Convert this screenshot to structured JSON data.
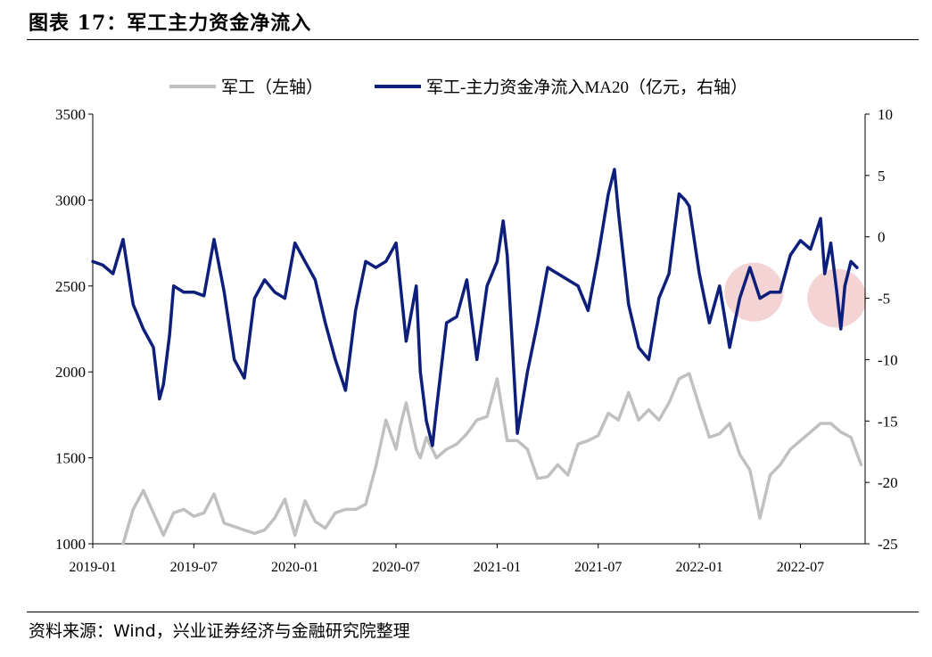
{
  "header": {
    "title": "图表 17：军工主力资金净流入"
  },
  "footer": {
    "source": "资料来源：Wind，兴业证券经济与金融研究院整理"
  },
  "colors": {
    "left_series": "#c0c0c0",
    "right_series": "#0d1f7a",
    "highlight": "#e8a7a7"
  },
  "chart_data": {
    "type": "line",
    "title": "军工主力资金净流入",
    "xlabel": "",
    "x_ticks": [
      "2019-01",
      "2019-07",
      "2020-01",
      "2020-07",
      "2021-01",
      "2021-07",
      "2022-01",
      "2022-07"
    ],
    "x_range": [
      "2019-01",
      "2022-10"
    ],
    "left_axis": {
      "ylim": [
        1000,
        3500
      ],
      "ticks": [
        1000,
        1500,
        2000,
        2500,
        3000,
        3500
      ]
    },
    "right_axis": {
      "ylim": [
        -25,
        10
      ],
      "ticks": [
        -25,
        -20,
        -15,
        -10,
        -5,
        0,
        5,
        10
      ]
    },
    "legend_position": "top-center",
    "grid": false,
    "series": [
      {
        "name": "军工（左轴）",
        "axis": "left",
        "x": [
          2019.15,
          2019.2,
          2019.25,
          2019.3,
          2019.35,
          2019.4,
          2019.45,
          2019.5,
          2019.55,
          2019.6,
          2019.65,
          2019.7,
          2019.75,
          2019.8,
          2019.85,
          2019.9,
          2019.95,
          2020.0,
          2020.05,
          2020.1,
          2020.15,
          2020.2,
          2020.25,
          2020.3,
          2020.35,
          2020.4,
          2020.45,
          2020.5,
          2020.52,
          2020.55,
          2020.6,
          2020.62,
          2020.65,
          2020.7,
          2020.75,
          2020.8,
          2020.85,
          2020.9,
          2020.95,
          2021.0,
          2021.05,
          2021.1,
          2021.15,
          2021.2,
          2021.25,
          2021.3,
          2021.35,
          2021.4,
          2021.45,
          2021.5,
          2021.55,
          2021.6,
          2021.65,
          2021.7,
          2021.75,
          2021.8,
          2021.85,
          2021.9,
          2021.95,
          2022.0,
          2022.05,
          2022.1,
          2022.15,
          2022.2,
          2022.25,
          2022.3,
          2022.35,
          2022.4,
          2022.45,
          2022.5,
          2022.55,
          2022.6,
          2022.65,
          2022.7,
          2022.75,
          2022.8
        ],
        "values": [
          1000,
          1200,
          1310,
          1180,
          1050,
          1180,
          1200,
          1160,
          1180,
          1290,
          1120,
          1100,
          1080,
          1060,
          1080,
          1150,
          1260,
          1050,
          1250,
          1130,
          1090,
          1180,
          1200,
          1200,
          1230,
          1450,
          1720,
          1550,
          1680,
          1820,
          1550,
          1500,
          1620,
          1500,
          1550,
          1580,
          1640,
          1720,
          1740,
          1960,
          1600,
          1600,
          1550,
          1380,
          1390,
          1460,
          1400,
          1580,
          1600,
          1630,
          1760,
          1720,
          1880,
          1720,
          1780,
          1720,
          1820,
          1960,
          1990,
          1800,
          1620,
          1640,
          1700,
          1520,
          1430,
          1150,
          1400,
          1460,
          1550,
          1600,
          1650,
          1700,
          1700,
          1650,
          1620,
          1460
        ],
        "notes": "approximate, values read from figure"
      },
      {
        "name": "军工-主力资金净流入MA20（亿元，右轴）",
        "axis": "right",
        "x": [
          2019.0,
          2019.05,
          2019.1,
          2019.15,
          2019.2,
          2019.25,
          2019.3,
          2019.33,
          2019.35,
          2019.38,
          2019.4,
          2019.45,
          2019.5,
          2019.55,
          2019.6,
          2019.65,
          2019.7,
          2019.75,
          2019.8,
          2019.85,
          2019.9,
          2019.95,
          2020.0,
          2020.05,
          2020.1,
          2020.15,
          2020.2,
          2020.25,
          2020.3,
          2020.35,
          2020.4,
          2020.45,
          2020.5,
          2020.55,
          2020.6,
          2020.62,
          2020.65,
          2020.68,
          2020.7,
          2020.75,
          2020.8,
          2020.85,
          2020.9,
          2020.95,
          2021.0,
          2021.03,
          2021.05,
          2021.1,
          2021.15,
          2021.2,
          2021.25,
          2021.3,
          2021.35,
          2021.4,
          2021.45,
          2021.5,
          2021.55,
          2021.58,
          2021.6,
          2021.65,
          2021.7,
          2021.75,
          2021.8,
          2021.85,
          2021.9,
          2021.93,
          2021.95,
          2022.0,
          2022.05,
          2022.1,
          2022.15,
          2022.2,
          2022.25,
          2022.3,
          2022.35,
          2022.4,
          2022.45,
          2022.5,
          2022.55,
          2022.6,
          2022.62,
          2022.65,
          2022.68,
          2022.7,
          2022.72,
          2022.75,
          2022.78
        ],
        "values": [
          -2.0,
          -2.3,
          -3.0,
          -0.2,
          -5.5,
          -7.5,
          -9.0,
          -13.2,
          -12.0,
          -8.0,
          -4.0,
          -4.5,
          -4.5,
          -4.8,
          -0.2,
          -4.5,
          -10.0,
          -11.5,
          -5.0,
          -3.5,
          -4.5,
          -5.0,
          -0.5,
          -2.0,
          -3.5,
          -7.0,
          -10.0,
          -12.5,
          -6.0,
          -2.0,
          -2.5,
          -2.0,
          -0.5,
          -8.5,
          -4.0,
          -11.0,
          -15.0,
          -17.0,
          -14.0,
          -7.0,
          -6.5,
          -3.5,
          -10.0,
          -4.0,
          -2.0,
          1.3,
          -1.5,
          -16.0,
          -11.0,
          -7.0,
          -2.5,
          -3.0,
          -3.5,
          -4.0,
          -6.0,
          -1.5,
          3.5,
          5.5,
          2.0,
          -5.5,
          -9.0,
          -10.0,
          -5.0,
          -3.0,
          3.5,
          3.0,
          2.5,
          -3.0,
          -7.0,
          -4.0,
          -9.0,
          -5.0,
          -2.5,
          -5.0,
          -4.5,
          -4.5,
          -1.5,
          -0.3,
          -1.0,
          1.5,
          -3.0,
          -0.5,
          -4.5,
          -7.5,
          -4.0,
          -2.0,
          -2.5
        ],
        "notes": "approximate, values read from figure"
      }
    ],
    "annotations": [
      {
        "type": "circle-highlight",
        "x": 2022.27,
        "y_right": -4.5
      },
      {
        "type": "circle-highlight",
        "x": 2022.68,
        "y_right": -5.0
      }
    ]
  }
}
